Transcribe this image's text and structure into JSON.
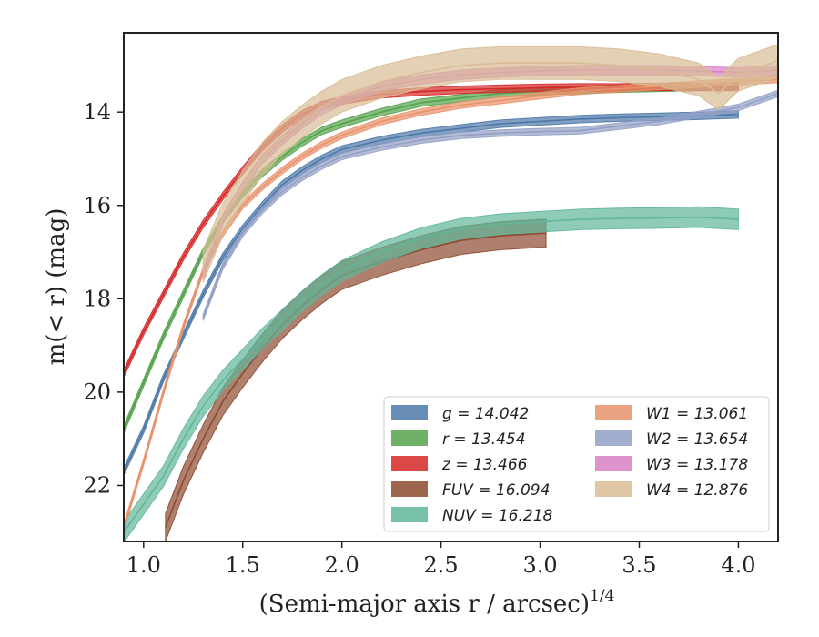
{
  "chart_data": {
    "type": "line",
    "xlabel": "(Semi-major axis r / arcsec)",
    "xlabel_superscript": "1/4",
    "ylabel": "m(< r) (mag)",
    "xlim": [
      0.9,
      4.2
    ],
    "ylim": [
      23.2,
      12.3
    ],
    "y_inverted": true,
    "grid": false,
    "legend_placement": "lower-right",
    "x_ticks": [
      1.0,
      1.5,
      2.0,
      2.5,
      3.0,
      3.5,
      4.0
    ],
    "x_tick_labels": [
      "1.0",
      "1.5",
      "2.0",
      "2.5",
      "3.0",
      "3.5",
      "4.0"
    ],
    "y_ticks": [
      14,
      16,
      18,
      20,
      22
    ],
    "y_tick_labels": [
      "14",
      "16",
      "18",
      "20",
      "22"
    ],
    "series": [
      {
        "name": "g = 14.042",
        "color": "#4c78a8",
        "band": 0.08,
        "x": [
          0.9,
          1.0,
          1.1,
          1.2,
          1.3,
          1.4,
          1.5,
          1.6,
          1.7,
          1.8,
          1.9,
          2.0,
          2.2,
          2.4,
          2.6,
          2.8,
          3.0,
          3.2,
          3.4,
          3.6,
          3.8,
          4.0
        ],
        "y": [
          21.7,
          20.8,
          19.7,
          18.8,
          17.9,
          17.1,
          16.5,
          16.0,
          15.55,
          15.25,
          15.0,
          14.8,
          14.6,
          14.45,
          14.35,
          14.25,
          14.2,
          14.15,
          14.12,
          14.1,
          14.08,
          14.05
        ]
      },
      {
        "name": "r = 13.454",
        "color": "#54a24b",
        "band": 0.08,
        "x": [
          0.9,
          1.0,
          1.1,
          1.2,
          1.3,
          1.4,
          1.5,
          1.6,
          1.7,
          1.8,
          1.9,
          2.0,
          2.2,
          2.4,
          2.6,
          2.8,
          3.0,
          3.2,
          3.4,
          3.6,
          3.8,
          4.0
        ],
        "y": [
          20.8,
          19.8,
          18.8,
          17.9,
          17.0,
          16.3,
          15.75,
          15.3,
          14.95,
          14.65,
          14.4,
          14.25,
          14.0,
          13.8,
          13.7,
          13.6,
          13.55,
          13.52,
          13.5,
          13.48,
          13.46,
          13.45
        ]
      },
      {
        "name": "z = 13.466",
        "color": "#d62728",
        "band": 0.08,
        "x": [
          0.9,
          1.0,
          1.1,
          1.2,
          1.3,
          1.4,
          1.5,
          1.6,
          1.7,
          1.8,
          1.9,
          2.0,
          2.2,
          2.4,
          2.6,
          2.8,
          3.0,
          3.2,
          3.4,
          3.6,
          3.8,
          4.0
        ],
        "y": [
          19.6,
          18.7,
          17.9,
          17.1,
          16.4,
          15.8,
          15.25,
          14.75,
          14.35,
          14.05,
          13.85,
          13.75,
          13.62,
          13.56,
          13.52,
          13.5,
          13.48,
          13.47,
          13.47,
          13.46,
          13.46,
          13.46
        ]
      },
      {
        "name": "FUV = 16.094",
        "color": "#8c4a2f",
        "band": 0.3,
        "x": [
          1.11,
          1.2,
          1.3,
          1.4,
          1.5,
          1.6,
          1.7,
          1.8,
          1.9,
          2.0,
          2.2,
          2.4,
          2.6,
          2.8,
          3.0,
          3.03
        ],
        "y": [
          22.9,
          21.9,
          21.0,
          20.2,
          19.6,
          19.05,
          18.55,
          18.15,
          17.8,
          17.5,
          17.2,
          16.95,
          16.75,
          16.65,
          16.6,
          16.6
        ]
      },
      {
        "name": "NUV = 16.218",
        "color": "#5fb69a",
        "band": 0.22,
        "x": [
          0.9,
          1.0,
          1.1,
          1.2,
          1.3,
          1.4,
          1.5,
          1.6,
          1.7,
          1.8,
          1.9,
          2.0,
          2.2,
          2.4,
          2.6,
          2.8,
          3.0,
          3.2,
          3.4,
          3.6,
          3.8,
          4.0
        ],
        "y": [
          23.0,
          22.4,
          21.8,
          21.0,
          20.3,
          19.75,
          19.3,
          18.85,
          18.45,
          18.05,
          17.7,
          17.4,
          17.0,
          16.7,
          16.5,
          16.4,
          16.35,
          16.3,
          16.28,
          16.27,
          16.25,
          16.3
        ]
      },
      {
        "name": "W1 = 13.061",
        "color": "#e8926a",
        "band": 0.07,
        "x": [
          0.9,
          1.0,
          1.1,
          1.2,
          1.3,
          1.4,
          1.5,
          1.6,
          1.7,
          1.8,
          1.9,
          2.0,
          2.2,
          2.4,
          2.6,
          2.8,
          3.0,
          3.2,
          3.4,
          3.6,
          3.8,
          4.0,
          4.2
        ],
        "y": [
          22.9,
          21.5,
          20.0,
          18.6,
          17.4,
          16.6,
          16.0,
          15.6,
          15.25,
          14.95,
          14.7,
          14.5,
          14.2,
          14.0,
          13.85,
          13.75,
          13.65,
          13.55,
          13.5,
          13.45,
          13.4,
          13.35,
          13.3
        ]
      },
      {
        "name": "W2 = 13.654",
        "color": "#92a0c6",
        "band": 0.07,
        "x": [
          1.3,
          1.4,
          1.5,
          1.6,
          1.7,
          1.8,
          1.9,
          2.0,
          2.2,
          2.4,
          2.6,
          2.8,
          3.0,
          3.2,
          3.4,
          3.6,
          3.8,
          4.0,
          4.2
        ],
        "y": [
          18.4,
          17.3,
          16.6,
          16.1,
          15.7,
          15.4,
          15.15,
          14.95,
          14.75,
          14.6,
          14.5,
          14.45,
          14.42,
          14.4,
          14.3,
          14.2,
          14.05,
          13.9,
          13.6
        ]
      },
      {
        "name": "W3 = 13.178",
        "color": "#d880c4",
        "band": 0.1,
        "x": [
          1.3,
          1.4,
          1.5,
          1.6,
          1.7,
          1.8,
          1.9,
          2.0,
          2.2,
          2.4,
          2.6,
          2.8,
          3.0,
          3.2,
          3.4,
          3.6,
          3.8,
          4.0,
          4.2
        ],
        "y": [
          17.5,
          16.3,
          15.6,
          15.0,
          14.6,
          14.25,
          13.95,
          13.75,
          13.45,
          13.3,
          13.2,
          13.15,
          13.12,
          13.1,
          13.1,
          13.1,
          13.12,
          13.15,
          13.1
        ]
      },
      {
        "name": "W4 = 12.876",
        "color": "#d9bc94",
        "band": 0.35,
        "x": [
          1.3,
          1.4,
          1.5,
          1.6,
          1.7,
          1.8,
          1.9,
          2.0,
          2.2,
          2.4,
          2.6,
          2.8,
          3.0,
          3.2,
          3.4,
          3.6,
          3.8,
          3.9,
          4.0,
          4.2
        ],
        "y": [
          17.3,
          16.3,
          15.6,
          15.0,
          14.55,
          14.2,
          13.9,
          13.65,
          13.35,
          13.15,
          13.0,
          12.95,
          12.95,
          12.95,
          13.0,
          13.1,
          13.3,
          13.6,
          13.2,
          12.9
        ]
      }
    ]
  }
}
